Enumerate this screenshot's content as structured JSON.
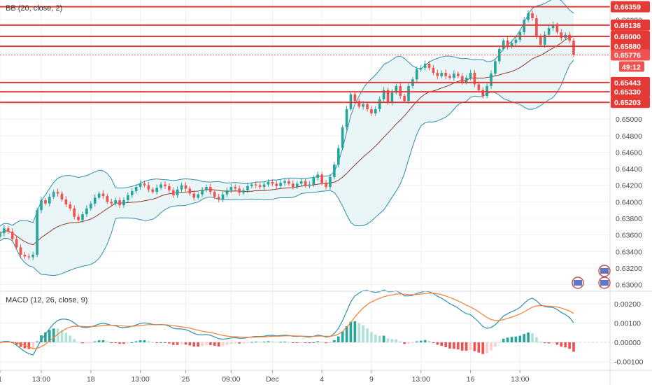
{
  "chart_data": [
    {
      "type": "candlestick",
      "indicator_label": "BB (20, close, 2)",
      "y_ticks": [
        "0.66200",
        "0.65800",
        "0.65000",
        "0.64800",
        "0.64600",
        "0.64400",
        "0.64200",
        "0.64000",
        "0.63800",
        "0.63600",
        "0.63400",
        "0.63200",
        "0.63000"
      ],
      "ylim": [
        0.6292,
        0.6644
      ],
      "horizontal_levels": [
        {
          "value": 0.66359,
          "label": "0.66359"
        },
        {
          "value": 0.66136,
          "label": "0.66136"
        },
        {
          "value": 0.66,
          "label": "0.66000"
        },
        {
          "value": 0.6588,
          "label": "0.65880"
        },
        {
          "value": 0.65443,
          "label": "0.65443"
        },
        {
          "value": 0.6533,
          "label": "0.65330"
        },
        {
          "value": 0.65203,
          "label": "0.65203"
        }
      ],
      "last_price": {
        "value": 0.65776,
        "label": "0.65776",
        "countdown": "49:12"
      },
      "closes": [
        0.6362,
        0.6368,
        0.6364,
        0.6355,
        0.6345,
        0.6336,
        0.6334,
        0.6333,
        0.6336,
        0.639,
        0.6402,
        0.6398,
        0.6406,
        0.6412,
        0.641,
        0.6403,
        0.6397,
        0.6392,
        0.6382,
        0.6378,
        0.6385,
        0.6392,
        0.6398,
        0.6405,
        0.641,
        0.6407,
        0.64,
        0.6398,
        0.6402,
        0.6396,
        0.6402,
        0.6408,
        0.6413,
        0.6418,
        0.6422,
        0.642,
        0.6415,
        0.6412,
        0.6417,
        0.6421,
        0.6419,
        0.6414,
        0.6408,
        0.6415,
        0.642,
        0.6416,
        0.641,
        0.6405,
        0.6409,
        0.6414,
        0.6418,
        0.6412,
        0.6406,
        0.6403,
        0.6409,
        0.6414,
        0.6418,
        0.6416,
        0.6411,
        0.6414,
        0.6419,
        0.6421,
        0.642,
        0.6418,
        0.6421,
        0.6424,
        0.6422,
        0.6419,
        0.6423,
        0.6425,
        0.6422,
        0.6418,
        0.6422,
        0.6425,
        0.642,
        0.6421,
        0.6429,
        0.6433,
        0.6423,
        0.6418,
        0.643,
        0.6445,
        0.6465,
        0.649,
        0.6512,
        0.653,
        0.6522,
        0.6515,
        0.6518,
        0.6512,
        0.6507,
        0.6512,
        0.6524,
        0.6535,
        0.652,
        0.6532,
        0.654,
        0.6528,
        0.6522,
        0.654,
        0.6548,
        0.656,
        0.6562,
        0.6567,
        0.6562,
        0.6556,
        0.6552,
        0.6556,
        0.6552,
        0.655,
        0.6555,
        0.6552,
        0.6545,
        0.655,
        0.6556,
        0.6542,
        0.6535,
        0.6528,
        0.654,
        0.6555,
        0.657,
        0.6585,
        0.6595,
        0.6588,
        0.6592,
        0.6596,
        0.6605,
        0.662,
        0.6628,
        0.6622,
        0.66,
        0.659,
        0.6602,
        0.661,
        0.6614,
        0.6605,
        0.6598,
        0.6602,
        0.6595,
        0.6578
      ],
      "x_labels": [
        {
          "index": 0,
          "label": "1"
        },
        {
          "index": 10,
          "label": "13:00"
        },
        {
          "index": 22,
          "label": "18"
        },
        {
          "index": 34,
          "label": "13:00"
        },
        {
          "index": 45,
          "label": "25"
        },
        {
          "index": 56,
          "label": "09:00"
        },
        {
          "index": 66,
          "label": "Dec"
        },
        {
          "index": 78,
          "label": "4"
        },
        {
          "index": 90,
          "label": "9"
        },
        {
          "index": 102,
          "label": "13:00"
        },
        {
          "index": 114,
          "label": "16"
        },
        {
          "index": 126,
          "label": "13:00"
        }
      ]
    },
    {
      "type": "bar+line",
      "indicator_label": "MACD (12, 26, close, 9)",
      "y_ticks": [
        "0.00200",
        "0.00100",
        "0.00000",
        "-0.00100"
      ],
      "ylim": [
        -0.00145,
        0.00265
      ]
    }
  ],
  "colors": {
    "up": "#26a69a",
    "down": "#ef5350",
    "level_line": "#e53935",
    "bb_band": "#2a8fa8",
    "bb_basis": "#8d3b28",
    "macd_line": "#2f8fb0",
    "signal_line": "#f57c33",
    "grid": "#eef0f3"
  }
}
